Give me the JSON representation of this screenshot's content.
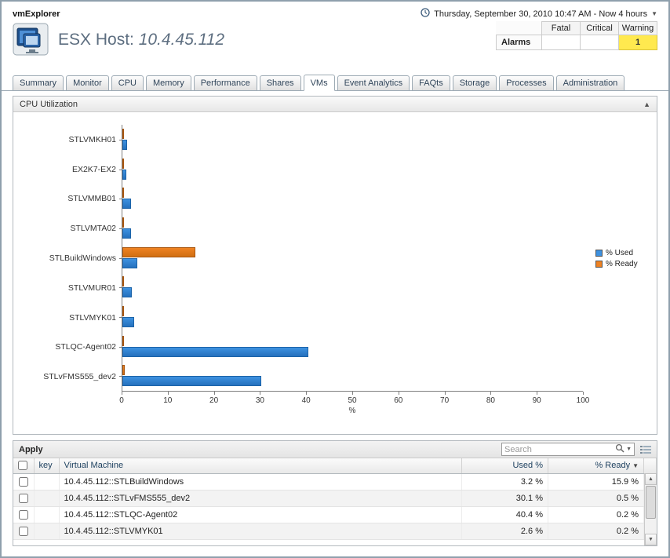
{
  "app": {
    "title": "vmExplorer"
  },
  "timebar": {
    "label": "Thursday, September 30, 2010 10:47 AM - Now 4 hours"
  },
  "header": {
    "title_prefix": "ESX Host: ",
    "host_ip": "10.4.45.112"
  },
  "alarms": {
    "label": "Alarms",
    "columns": [
      "Fatal",
      "Critical",
      "Warning"
    ],
    "values": {
      "fatal": "",
      "critical": "",
      "warning": "1"
    }
  },
  "tabs": {
    "items": [
      "Summary",
      "Monitor",
      "CPU",
      "Memory",
      "Performance",
      "Shares",
      "VMs",
      "Event Analytics",
      "FAQts",
      "Storage",
      "Processes",
      "Administration"
    ],
    "active": "VMs"
  },
  "panel": {
    "title": "CPU Utilization"
  },
  "chart_data": {
    "type": "bar",
    "orientation": "horizontal",
    "title": "CPU Utilization",
    "categories": [
      "STLVMKH01",
      "EX2K7-EX2",
      "STLVMMB01",
      "STLVMTA02",
      "STLBuildWindows",
      "STLVMUR01",
      "STLVMYK01",
      "STLQC-Agent02",
      "STLvFMS555_dev2"
    ],
    "series": [
      {
        "name": "% Used",
        "color": "#3d91e0",
        "values": [
          1.0,
          0.9,
          1.8,
          1.9,
          3.2,
          2.0,
          2.6,
          40.4,
          30.1
        ]
      },
      {
        "name": "% Ready",
        "color": "#ef8222",
        "values": [
          0.3,
          0.3,
          0.3,
          0.3,
          15.9,
          0.3,
          0.2,
          0.2,
          0.5
        ]
      }
    ],
    "xlabel": "%",
    "xlim": [
      0,
      100
    ],
    "xticks": [
      0,
      10,
      20,
      30,
      40,
      50,
      60,
      70,
      80,
      90,
      100
    ],
    "grid": false,
    "legend_position": "right"
  },
  "grid": {
    "apply_label": "Apply",
    "search_placeholder": "Search",
    "columns": {
      "key": "key",
      "vm": "Virtual Machine",
      "used": "Used %",
      "ready": "% Ready"
    },
    "sort_column": "% Ready",
    "rows": [
      {
        "vm": "10.4.45.112::STLBuildWindows",
        "used": "3.2 %",
        "ready": "15.9 %"
      },
      {
        "vm": "10.4.45.112::STLvFMS555_dev2",
        "used": "30.1 %",
        "ready": "0.5 %"
      },
      {
        "vm": "10.4.45.112::STLQC-Agent02",
        "used": "40.4 %",
        "ready": "0.2 %"
      },
      {
        "vm": "10.4.45.112::STLVMYK01",
        "used": "2.6 %",
        "ready": "0.2 %"
      }
    ]
  },
  "colors": {
    "used": "#3d91e0",
    "ready": "#ef8222",
    "warning_bg": "#ffe94f"
  }
}
